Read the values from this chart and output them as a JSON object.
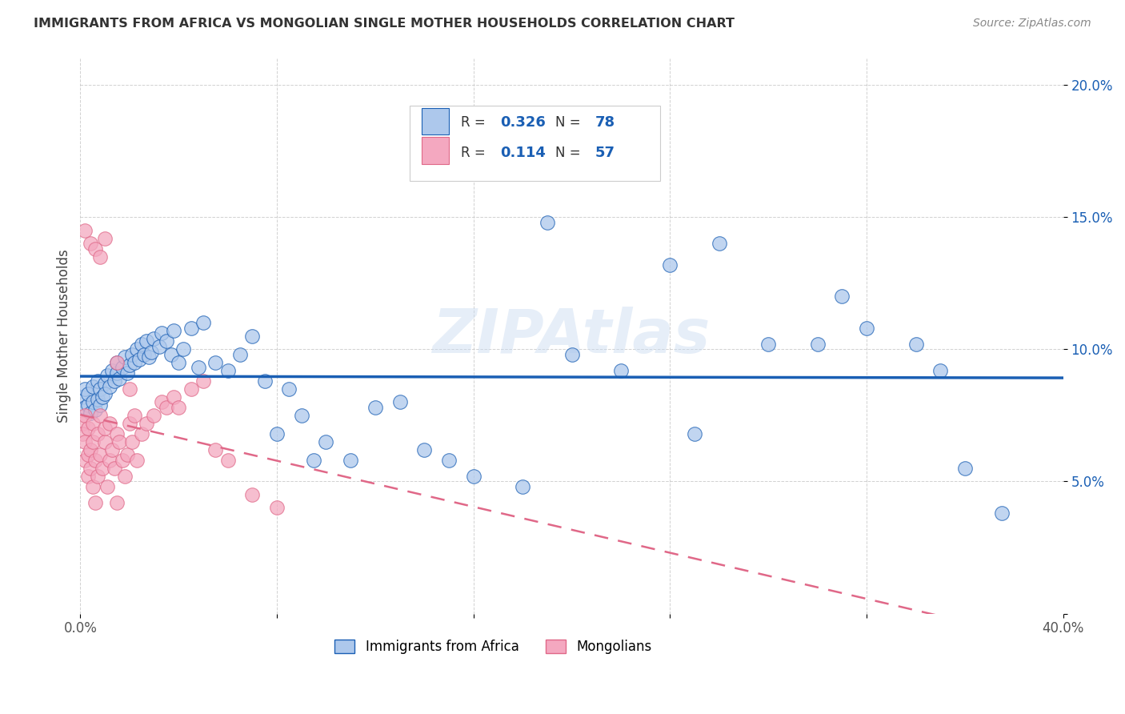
{
  "title": "IMMIGRANTS FROM AFRICA VS MONGOLIAN SINGLE MOTHER HOUSEHOLDS CORRELATION CHART",
  "source": "Source: ZipAtlas.com",
  "ylabel": "Single Mother Households",
  "xlim": [
    0.0,
    0.4
  ],
  "ylim": [
    0.0,
    0.21
  ],
  "africa_R": 0.326,
  "africa_N": 78,
  "mongolia_R": 0.114,
  "mongolia_N": 57,
  "africa_color": "#adc8ec",
  "mongolia_color": "#f4a8c0",
  "africa_line_color": "#1a5fb4",
  "mongolia_line_color": "#e06888",
  "watermark": "ZIPAtlas",
  "africa_x": [
    0.001,
    0.002,
    0.002,
    0.003,
    0.003,
    0.004,
    0.005,
    0.005,
    0.006,
    0.007,
    0.007,
    0.008,
    0.008,
    0.009,
    0.01,
    0.01,
    0.011,
    0.012,
    0.013,
    0.014,
    0.015,
    0.015,
    0.016,
    0.017,
    0.018,
    0.019,
    0.02,
    0.021,
    0.022,
    0.023,
    0.024,
    0.025,
    0.026,
    0.027,
    0.028,
    0.029,
    0.03,
    0.032,
    0.033,
    0.035,
    0.037,
    0.038,
    0.04,
    0.042,
    0.045,
    0.048,
    0.05,
    0.055,
    0.06,
    0.065,
    0.07,
    0.075,
    0.08,
    0.085,
    0.09,
    0.095,
    0.1,
    0.11,
    0.12,
    0.13,
    0.14,
    0.15,
    0.16,
    0.18,
    0.2,
    0.22,
    0.25,
    0.28,
    0.3,
    0.32,
    0.34,
    0.35,
    0.36,
    0.375,
    0.19,
    0.24,
    0.26,
    0.31
  ],
  "africa_y": [
    0.082,
    0.078,
    0.085,
    0.079,
    0.083,
    0.076,
    0.08,
    0.086,
    0.077,
    0.081,
    0.088,
    0.079,
    0.085,
    0.082,
    0.087,
    0.083,
    0.09,
    0.086,
    0.092,
    0.088,
    0.091,
    0.095,
    0.089,
    0.093,
    0.097,
    0.091,
    0.094,
    0.098,
    0.095,
    0.1,
    0.096,
    0.102,
    0.098,
    0.103,
    0.097,
    0.099,
    0.104,
    0.101,
    0.106,
    0.103,
    0.098,
    0.107,
    0.095,
    0.1,
    0.108,
    0.093,
    0.11,
    0.095,
    0.092,
    0.098,
    0.105,
    0.088,
    0.068,
    0.085,
    0.075,
    0.058,
    0.065,
    0.058,
    0.078,
    0.08,
    0.062,
    0.058,
    0.052,
    0.048,
    0.098,
    0.092,
    0.068,
    0.102,
    0.102,
    0.108,
    0.102,
    0.092,
    0.055,
    0.038,
    0.148,
    0.132,
    0.14,
    0.12
  ],
  "mongolia_x": [
    0.001,
    0.001,
    0.002,
    0.002,
    0.002,
    0.003,
    0.003,
    0.003,
    0.004,
    0.004,
    0.005,
    0.005,
    0.005,
    0.006,
    0.006,
    0.007,
    0.007,
    0.008,
    0.008,
    0.009,
    0.01,
    0.01,
    0.011,
    0.012,
    0.012,
    0.013,
    0.014,
    0.015,
    0.015,
    0.016,
    0.017,
    0.018,
    0.019,
    0.02,
    0.021,
    0.022,
    0.023,
    0.025,
    0.027,
    0.03,
    0.033,
    0.035,
    0.038,
    0.04,
    0.045,
    0.05,
    0.055,
    0.06,
    0.07,
    0.08,
    0.002,
    0.004,
    0.006,
    0.008,
    0.01,
    0.015,
    0.02
  ],
  "mongolia_y": [
    0.072,
    0.068,
    0.065,
    0.058,
    0.075,
    0.06,
    0.052,
    0.07,
    0.055,
    0.062,
    0.048,
    0.065,
    0.072,
    0.058,
    0.042,
    0.052,
    0.068,
    0.06,
    0.075,
    0.055,
    0.065,
    0.07,
    0.048,
    0.058,
    0.072,
    0.062,
    0.055,
    0.068,
    0.042,
    0.065,
    0.058,
    0.052,
    0.06,
    0.072,
    0.065,
    0.075,
    0.058,
    0.068,
    0.072,
    0.075,
    0.08,
    0.078,
    0.082,
    0.078,
    0.085,
    0.088,
    0.062,
    0.058,
    0.045,
    0.04,
    0.145,
    0.14,
    0.138,
    0.135,
    0.142,
    0.095,
    0.085
  ]
}
